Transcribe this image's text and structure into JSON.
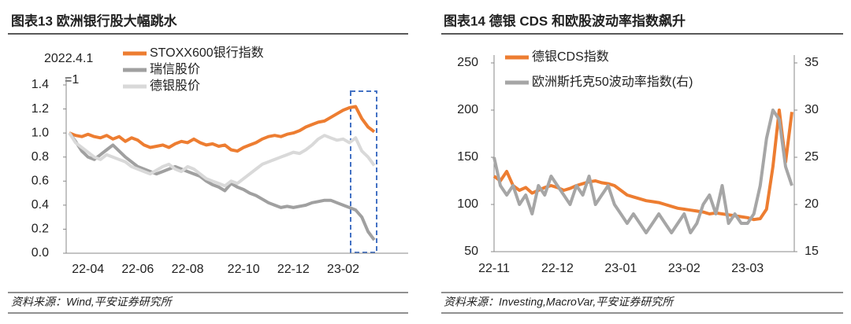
{
  "chart_data": [
    {
      "type": "line",
      "title": "图表13    欧洲银行股大幅跳水",
      "annotations": [
        "2022.4.1",
        "=1"
      ],
      "source": "资料来源：Wind,平安证券研究所",
      "categories": [
        null,
        null,
        null,
        "22-04",
        null,
        null,
        null,
        null,
        null,
        null,
        null,
        "22-06",
        null,
        null,
        null,
        null,
        null,
        null,
        null,
        "22-08",
        null,
        null,
        null,
        null,
        null,
        null,
        null,
        null,
        "22-10",
        null,
        null,
        null,
        null,
        null,
        null,
        null,
        "22-12",
        null,
        null,
        null,
        null,
        null,
        null,
        null,
        "23-02",
        null,
        null,
        null,
        null,
        null
      ],
      "series": [
        {
          "name": "STOXX600银行指数",
          "color": "#ed7d31",
          "values": [
            1.0,
            0.98,
            0.97,
            0.99,
            0.97,
            0.96,
            0.98,
            0.95,
            0.97,
            0.93,
            0.96,
            0.94,
            0.9,
            0.88,
            0.89,
            0.9,
            0.88,
            0.91,
            0.93,
            0.92,
            0.95,
            0.92,
            0.9,
            0.91,
            0.89,
            0.9,
            0.86,
            0.85,
            0.88,
            0.9,
            0.92,
            0.95,
            0.97,
            0.98,
            0.97,
            0.99,
            1.0,
            1.02,
            1.05,
            1.07,
            1.09,
            1.1,
            1.13,
            1.16,
            1.19,
            1.21,
            1.22,
            1.12,
            1.05,
            1.01
          ]
        },
        {
          "name": "瑞信股价",
          "color": "#a0a0a0",
          "values": [
            1.0,
            0.93,
            0.85,
            0.8,
            0.78,
            0.82,
            0.86,
            0.9,
            0.85,
            0.8,
            0.76,
            0.72,
            0.7,
            0.68,
            0.66,
            0.68,
            0.7,
            0.72,
            0.7,
            0.68,
            0.66,
            0.64,
            0.6,
            0.57,
            0.55,
            0.52,
            0.58,
            0.55,
            0.53,
            0.5,
            0.48,
            0.45,
            0.42,
            0.4,
            0.38,
            0.39,
            0.38,
            0.39,
            0.4,
            0.42,
            0.43,
            0.44,
            0.44,
            0.42,
            0.4,
            0.38,
            0.36,
            0.3,
            0.18,
            0.11
          ]
        },
        {
          "name": "德银股价",
          "color": "#d9d9d9",
          "values": [
            1.0,
            0.92,
            0.88,
            0.84,
            0.8,
            0.78,
            0.82,
            0.8,
            0.78,
            0.76,
            0.72,
            0.7,
            0.68,
            0.66,
            0.69,
            0.72,
            0.74,
            0.7,
            0.68,
            0.72,
            0.7,
            0.66,
            0.62,
            0.6,
            0.58,
            0.56,
            0.6,
            0.58,
            0.62,
            0.66,
            0.7,
            0.74,
            0.76,
            0.78,
            0.8,
            0.82,
            0.84,
            0.83,
            0.86,
            0.9,
            0.95,
            0.98,
            0.96,
            0.94,
            0.95,
            0.92,
            0.96,
            0.85,
            0.8,
            0.73
          ]
        }
      ],
      "ylim": [
        0,
        1.4
      ],
      "yticks": [
        {
          "value": 0,
          "label": "0.0"
        },
        0.2,
        0.4,
        0.6,
        0.8,
        {
          "value": 1,
          "label": "1.0"
        },
        1.2,
        1.4
      ]
    },
    {
      "type": "line",
      "title": "图表14    德银 CDS 和欧股波动率指数飙升",
      "source": "资料来源：Investing,MacroVar,平安证券研究所",
      "categories": [
        "22-11",
        null,
        null,
        null,
        null,
        null,
        null,
        null,
        null,
        null,
        "22-12",
        null,
        null,
        null,
        null,
        null,
        null,
        null,
        null,
        null,
        "23-01",
        null,
        null,
        null,
        null,
        null,
        null,
        null,
        null,
        null,
        "23-02",
        null,
        null,
        null,
        null,
        null,
        null,
        null,
        null,
        null,
        "23-03",
        null,
        null,
        null,
        null,
        null,
        null,
        null
      ],
      "series": [
        {
          "name": "德银CDS指数",
          "color": "#ed7d31",
          "values": [
            130,
            125,
            135,
            120,
            115,
            118,
            112,
            115,
            118,
            120,
            118,
            115,
            117,
            120,
            122,
            124,
            125,
            123,
            122,
            120,
            115,
            110,
            108,
            106,
            104,
            103,
            102,
            100,
            98,
            96,
            95,
            94,
            93,
            92,
            90,
            91,
            90,
            89,
            88,
            87,
            86,
            84,
            85,
            95,
            140,
            200,
            145,
            198
          ]
        },
        {
          "name": "欧洲斯托克50波动率指数(右)",
          "color": "#a6a6a6",
          "axis": "y2",
          "values": [
            25,
            22,
            21,
            22,
            20,
            21,
            19,
            22,
            21,
            23,
            22,
            21,
            20,
            22,
            21,
            23,
            20,
            21,
            22,
            20,
            19,
            18,
            19,
            18,
            17,
            18,
            19,
            18,
            17,
            18,
            19,
            17,
            18,
            20,
            21,
            19,
            22,
            18,
            19,
            18,
            18,
            19,
            22,
            27,
            30,
            29,
            24,
            22
          ]
        }
      ],
      "ylim": [
        50,
        250
      ],
      "yticks": [
        50,
        100,
        150,
        200,
        250
      ],
      "y2lim": [
        15,
        35
      ],
      "y2ticks": [
        15,
        20,
        25,
        30,
        35
      ]
    }
  ]
}
